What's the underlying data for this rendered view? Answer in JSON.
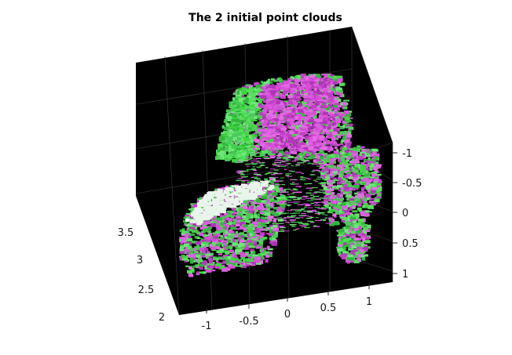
{
  "chart_data": {
    "type": "scatter",
    "subtype": "3d-point-cloud",
    "title": "The 2 initial point clouds",
    "axes_background": "#000000",
    "grid": true,
    "x_axis": {
      "ticks": [
        "-1",
        "-0.5",
        "0",
        "0.5",
        "1"
      ],
      "lim": [
        -1.25,
        1.25
      ]
    },
    "y_axis": {
      "ticks": [
        "2",
        "2.5",
        "3",
        "3.5"
      ],
      "lim": [
        1.9,
        3.8
      ]
    },
    "z_axis": {
      "ticks": [
        "-1",
        "-0.5",
        "0",
        "0.5",
        "1"
      ],
      "lim": [
        -1.1,
        1.1
      ]
    },
    "series": [
      {
        "color": "#3fd63f"
      },
      {
        "color": "#d84fd8"
      }
    ]
  }
}
